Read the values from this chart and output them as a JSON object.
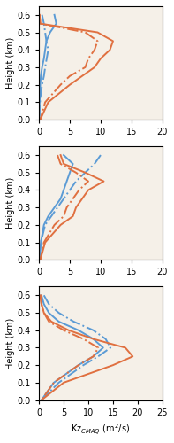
{
  "panels": [
    {
      "xlim": [
        0,
        20
      ],
      "xticks": [
        0,
        5,
        10,
        15,
        20
      ],
      "xlabel": "",
      "blue_solid": {
        "x": [
          2.5,
          2.8,
          1.8,
          1.2,
          1.0,
          0.8,
          0.5,
          0.3,
          0.2,
          0.1,
          0.05
        ],
        "y": [
          0.6,
          0.55,
          0.5,
          0.45,
          0.4,
          0.35,
          0.3,
          0.25,
          0.2,
          0.1,
          0.0
        ]
      },
      "blue_dashdot": {
        "x": [
          0.5,
          0.8,
          1.0,
          1.2,
          1.5,
          1.0,
          0.8,
          0.5,
          0.3,
          0.1,
          0.05
        ],
        "y": [
          0.6,
          0.55,
          0.5,
          0.45,
          0.4,
          0.3,
          0.25,
          0.2,
          0.15,
          0.08,
          0.0
        ]
      },
      "red_solid": {
        "x": [
          0.1,
          0.2,
          9.5,
          12.0,
          11.5,
          10.0,
          9.0,
          7.0,
          5.0,
          1.5,
          0.2
        ],
        "y": [
          0.6,
          0.55,
          0.5,
          0.45,
          0.4,
          0.35,
          0.3,
          0.25,
          0.2,
          0.1,
          0.0
        ]
      },
      "red_dashdot": {
        "x": [
          0.1,
          0.2,
          7.5,
          9.5,
          9.0,
          8.0,
          7.5,
          5.0,
          3.5,
          1.0,
          0.2
        ],
        "y": [
          0.6,
          0.55,
          0.5,
          0.45,
          0.4,
          0.35,
          0.3,
          0.25,
          0.2,
          0.1,
          0.0
        ]
      }
    },
    {
      "xlim": [
        0,
        20
      ],
      "xticks": [
        0,
        5,
        10,
        15,
        20
      ],
      "xlabel": "",
      "blue_solid": {
        "x": [
          4.0,
          5.5,
          5.0,
          4.5,
          4.0,
          3.5,
          2.5,
          1.5,
          0.8,
          0.3,
          0.05
        ],
        "y": [
          0.6,
          0.55,
          0.5,
          0.45,
          0.4,
          0.35,
          0.3,
          0.25,
          0.2,
          0.1,
          0.0
        ]
      },
      "blue_dashdot": {
        "x": [
          10.0,
          9.0,
          7.5,
          6.0,
          5.0,
          4.0,
          3.0,
          2.0,
          1.0,
          0.3,
          0.05
        ],
        "y": [
          0.6,
          0.55,
          0.5,
          0.45,
          0.4,
          0.35,
          0.3,
          0.25,
          0.2,
          0.1,
          0.0
        ]
      },
      "red_solid": {
        "x": [
          3.5,
          4.0,
          7.5,
          10.5,
          8.0,
          7.0,
          6.0,
          5.5,
          3.5,
          1.0,
          0.2
        ],
        "y": [
          0.6,
          0.55,
          0.5,
          0.45,
          0.4,
          0.35,
          0.3,
          0.25,
          0.2,
          0.1,
          0.0
        ]
      },
      "red_dashdot": {
        "x": [
          3.0,
          3.5,
          6.0,
          8.0,
          6.5,
          5.5,
          4.5,
          4.0,
          2.5,
          0.8,
          0.2
        ],
        "y": [
          0.6,
          0.55,
          0.5,
          0.45,
          0.4,
          0.35,
          0.3,
          0.25,
          0.2,
          0.1,
          0.0
        ]
      }
    },
    {
      "xlim": [
        0,
        25
      ],
      "xticks": [
        0,
        5,
        10,
        15,
        20,
        25
      ],
      "xlabel": "Kz$_{CMAQ}$ (m$^2$/s)",
      "blue_solid": {
        "x": [
          0.5,
          1.0,
          2.0,
          4.0,
          8.0,
          11.0,
          13.0,
          11.0,
          8.0,
          3.0,
          0.5
        ],
        "y": [
          0.6,
          0.55,
          0.5,
          0.45,
          0.4,
          0.35,
          0.3,
          0.25,
          0.2,
          0.1,
          0.0
        ]
      },
      "blue_dashdot": {
        "x": [
          1.0,
          2.0,
          4.0,
          7.0,
          11.0,
          13.5,
          14.5,
          12.0,
          9.0,
          4.0,
          0.5
        ],
        "y": [
          0.6,
          0.55,
          0.5,
          0.45,
          0.4,
          0.35,
          0.3,
          0.25,
          0.2,
          0.1,
          0.0
        ]
      },
      "red_solid": {
        "x": [
          0.3,
          0.5,
          1.0,
          2.5,
          6.0,
          11.0,
          17.5,
          19.0,
          15.0,
          5.0,
          0.5
        ],
        "y": [
          0.6,
          0.55,
          0.5,
          0.45,
          0.4,
          0.35,
          0.3,
          0.25,
          0.2,
          0.1,
          0.0
        ]
      },
      "red_dashdot": {
        "x": [
          0.3,
          0.5,
          1.0,
          2.0,
          5.0,
          9.0,
          12.0,
          11.0,
          8.0,
          3.0,
          0.5
        ],
        "y": [
          0.6,
          0.55,
          0.5,
          0.45,
          0.4,
          0.35,
          0.3,
          0.25,
          0.2,
          0.1,
          0.0
        ]
      }
    }
  ],
  "ylim": [
    0,
    0.65
  ],
  "yticks": [
    0.0,
    0.1,
    0.2,
    0.3,
    0.4,
    0.5,
    0.6
  ],
  "ylabel": "Height (km)",
  "blue_color": "#5b9bd5",
  "red_color": "#e07040",
  "line_width": 1.4,
  "bg_color": "#f5f0e8"
}
